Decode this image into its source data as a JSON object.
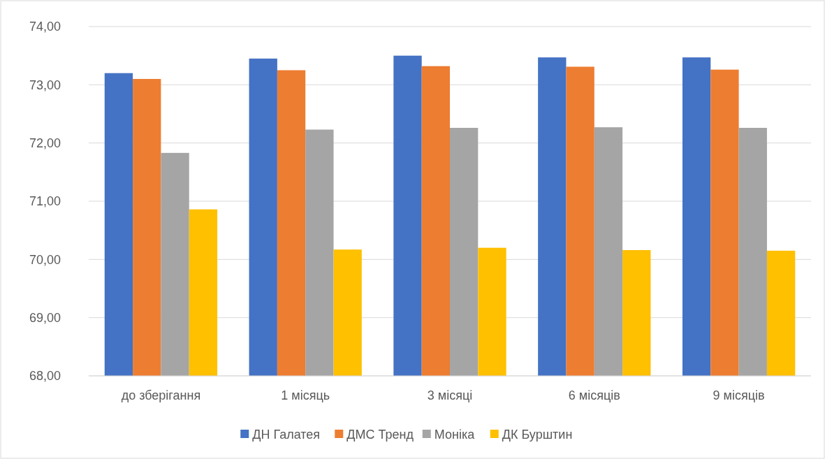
{
  "chart_data": {
    "type": "bar",
    "categories": [
      "до зберігання",
      "1 місяць",
      "3 місяці",
      "6 місяців",
      "9 місяців"
    ],
    "series": [
      {
        "name": "ДН Галатея",
        "color": "#4472c4",
        "values": [
          73.2,
          73.45,
          73.5,
          73.47,
          73.47
        ]
      },
      {
        "name": "ДМС Тренд",
        "color": "#ed7d31",
        "values": [
          73.1,
          73.25,
          73.32,
          73.31,
          73.26
        ]
      },
      {
        "name": "Моніка",
        "color": "#a5a5a5",
        "values": [
          71.83,
          72.23,
          72.26,
          72.27,
          72.26
        ]
      },
      {
        "name": "ДК Бурштин",
        "color": "#ffc000",
        "values": [
          70.86,
          70.17,
          70.2,
          70.16,
          70.15
        ]
      }
    ],
    "ylim": [
      68,
      74
    ],
    "yticks": [
      {
        "value": 68,
        "label": "68,00"
      },
      {
        "value": 69,
        "label": "69,00"
      },
      {
        "value": 70,
        "label": "70,00"
      },
      {
        "value": 71,
        "label": "71,00"
      },
      {
        "value": 72,
        "label": "72,00"
      },
      {
        "value": 73,
        "label": "73,00"
      },
      {
        "value": 74,
        "label": "74,00"
      }
    ],
    "grid": "y",
    "legend": "bottom"
  }
}
